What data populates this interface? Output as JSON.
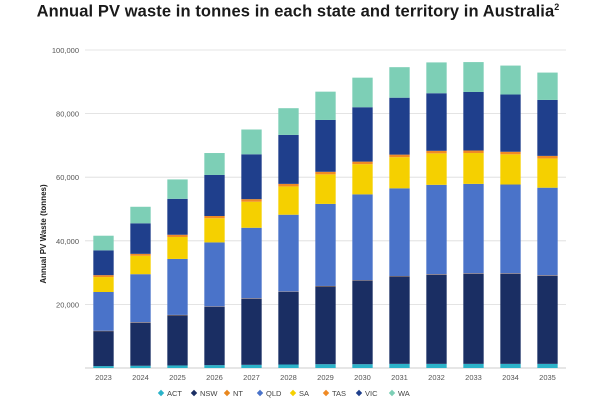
{
  "title_main": "Annual PV waste in tonnes in each state and territory in Australia",
  "title_sup": "2",
  "chart_data": {
    "type": "bar",
    "stacked": true,
    "title": "Annual PV waste in tonnes in each state and territory in Australia",
    "ylabel": "Annual PV Waste (tonnes)",
    "xlabel": "",
    "ylim": [
      0,
      100000
    ],
    "yticks": [
      20000,
      40000,
      60000,
      80000,
      100000
    ],
    "ytick_labels": [
      "20,000",
      "40,000",
      "60,000",
      "80,000",
      "100,000"
    ],
    "grid": true,
    "legend_position": "bottom",
    "categories": [
      "2023",
      "2024",
      "2025",
      "2026",
      "2027",
      "2028",
      "2029",
      "2030",
      "2031",
      "2032",
      "2033",
      "2034",
      "2035"
    ],
    "series": [
      {
        "name": "ACT",
        "color": "#2bb3c9",
        "values": [
          600,
          700,
          800,
          900,
          1000,
          1100,
          1200,
          1200,
          1300,
          1300,
          1300,
          1300,
          1300
        ]
      },
      {
        "name": "NSW",
        "color": "#1a2e63",
        "values": [
          11000,
          13500,
          15800,
          18300,
          20800,
          22800,
          24500,
          26300,
          27500,
          28000,
          28300,
          28300,
          27700
        ]
      },
      {
        "name": "NT",
        "color": "#e8871e",
        "values": [
          100,
          100,
          100,
          100,
          100,
          100,
          100,
          100,
          100,
          100,
          100,
          100,
          100
        ]
      },
      {
        "name": "QLD",
        "color": "#4a73c9",
        "values": [
          12200,
          15200,
          17600,
          20200,
          22200,
          24200,
          25800,
          27000,
          27600,
          28200,
          28200,
          28000,
          27600
        ]
      },
      {
        "name": "SA",
        "color": "#f5d000",
        "values": [
          4700,
          5800,
          6900,
          7600,
          8200,
          8900,
          9300,
          9500,
          9800,
          9900,
          9700,
          9500,
          9200
        ]
      },
      {
        "name": "TAS",
        "color": "#f08a24",
        "values": [
          600,
          600,
          700,
          700,
          800,
          800,
          800,
          800,
          800,
          800,
          800,
          800,
          800
        ]
      },
      {
        "name": "VIC",
        "color": "#1f3f8c",
        "values": [
          7800,
          9600,
          11300,
          12900,
          14100,
          15400,
          16300,
          17100,
          17900,
          18100,
          18400,
          18000,
          17600
        ]
      },
      {
        "name": "WA",
        "color": "#7dcfb6",
        "values": [
          4600,
          5200,
          6100,
          6900,
          7800,
          8400,
          8900,
          9300,
          9600,
          9700,
          9400,
          9100,
          8600
        ]
      }
    ]
  }
}
